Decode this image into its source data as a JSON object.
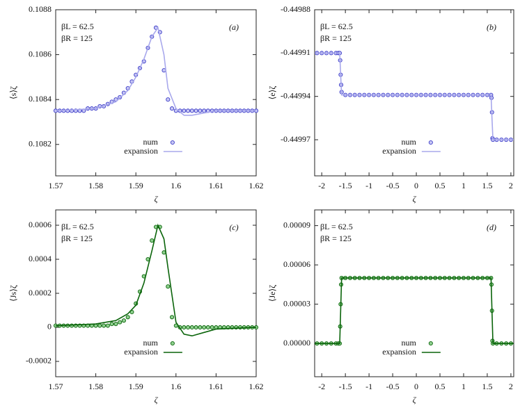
{
  "chart_data": [
    {
      "type": "line",
      "panel": "(a)",
      "ylabel": "⟨s⟩ζ",
      "xlabel": "ζ",
      "annotations": [
        "βL = 62.5",
        "βR = 125"
      ],
      "xlim": [
        1.57,
        1.62
      ],
      "xticks": [
        1.57,
        1.58,
        1.59,
        1.6,
        1.61,
        1.62
      ],
      "ylim": [
        0.10806,
        0.1088
      ],
      "yticks": [
        0.1082,
        0.1084,
        0.1086,
        0.1088
      ],
      "legend": "bottom",
      "series": [
        {
          "name": "num",
          "mode": "markers",
          "color": "#3b3bc8",
          "fill": "#c8c8f4",
          "x": [
            1.57,
            1.571,
            1.572,
            1.573,
            1.574,
            1.575,
            1.576,
            1.577,
            1.578,
            1.579,
            1.58,
            1.581,
            1.582,
            1.583,
            1.584,
            1.585,
            1.586,
            1.587,
            1.588,
            1.589,
            1.59,
            1.591,
            1.592,
            1.593,
            1.594,
            1.595,
            1.596,
            1.597,
            1.598,
            1.599,
            1.6,
            1.601,
            1.602,
            1.603,
            1.604,
            1.605,
            1.606,
            1.607,
            1.608,
            1.609,
            1.61,
            1.611,
            1.612,
            1.613,
            1.614,
            1.615,
            1.616,
            1.617,
            1.618,
            1.619,
            1.62
          ],
          "values": [
            0.10835,
            0.10835,
            0.10835,
            0.10835,
            0.10835,
            0.10835,
            0.10835,
            0.10835,
            0.10836,
            0.10836,
            0.10836,
            0.10837,
            0.10837,
            0.10838,
            0.10839,
            0.1084,
            0.10841,
            0.10843,
            0.10845,
            0.10848,
            0.10851,
            0.10854,
            0.10857,
            0.10863,
            0.10868,
            0.10872,
            0.1087,
            0.10853,
            0.1084,
            0.10836,
            0.10835,
            0.10835,
            0.10835,
            0.10835,
            0.10835,
            0.10835,
            0.10835,
            0.10835,
            0.10835,
            0.10835,
            0.10835,
            0.10835,
            0.10835,
            0.10835,
            0.10835,
            0.10835,
            0.10835,
            0.10835,
            0.10835,
            0.10835,
            0.10835
          ]
        },
        {
          "name": "expansion",
          "mode": "line",
          "color": "#a8a8ec",
          "x": [
            1.57,
            1.58,
            1.585,
            1.588,
            1.59,
            1.592,
            1.594,
            1.5955,
            1.597,
            1.598,
            1.6,
            1.602,
            1.604,
            1.607,
            1.61,
            1.62
          ],
          "values": [
            0.10835,
            0.10836,
            0.10839,
            0.10844,
            0.1085,
            0.10858,
            0.10868,
            0.10872,
            0.1086,
            0.10845,
            0.10836,
            0.10833,
            0.10833,
            0.10834,
            0.10835,
            0.10835
          ]
        }
      ]
    },
    {
      "type": "line",
      "panel": "(b)",
      "ylabel": "⟨e⟩ζ",
      "xlabel": "ζ",
      "annotations": [
        "βL = 62.5",
        "βR = 125"
      ],
      "xlim": [
        -2.15,
        2.06
      ],
      "xticks": [
        -2,
        -1.5,
        -1,
        -0.5,
        0,
        0.5,
        1,
        1.5,
        2
      ],
      "ylim": [
        -0.449995,
        -0.44988
      ],
      "yticks": [
        -0.44997,
        -0.44994,
        -0.44991,
        -0.44988
      ],
      "legend": "bottom",
      "series": [
        {
          "name": "num",
          "mode": "markers",
          "color": "#3b3bc8",
          "fill": "#c8c8f4",
          "x": [
            -2.1,
            -2,
            -1.9,
            -1.8,
            -1.7,
            -1.65,
            -1.62,
            -1.61,
            -1.6,
            -1.59,
            -1.58,
            -1.5,
            -1.4,
            -1.3,
            -1.2,
            -1.1,
            -1,
            -0.9,
            -0.8,
            -0.7,
            -0.6,
            -0.5,
            -0.4,
            -0.3,
            -0.2,
            -0.1,
            0,
            0.1,
            0.2,
            0.3,
            0.4,
            0.5,
            0.6,
            0.7,
            0.8,
            0.9,
            1,
            1.1,
            1.2,
            1.3,
            1.4,
            1.5,
            1.58,
            1.59,
            1.6,
            1.61,
            1.62,
            1.7,
            1.8,
            1.9,
            2
          ],
          "values": [
            -0.44991,
            -0.44991,
            -0.44991,
            -0.44991,
            -0.44991,
            -0.44991,
            -0.44991,
            -0.449915,
            -0.449925,
            -0.449932,
            -0.449937,
            -0.449939,
            -0.449939,
            -0.449939,
            -0.449939,
            -0.449939,
            -0.449939,
            -0.449939,
            -0.449939,
            -0.449939,
            -0.449939,
            -0.449939,
            -0.449939,
            -0.449939,
            -0.449939,
            -0.449939,
            -0.449939,
            -0.449939,
            -0.449939,
            -0.449939,
            -0.449939,
            -0.449939,
            -0.449939,
            -0.449939,
            -0.449939,
            -0.449939,
            -0.449939,
            -0.449939,
            -0.449939,
            -0.449939,
            -0.449939,
            -0.449939,
            -0.449939,
            -0.449941,
            -0.449951,
            -0.449969,
            -0.44997,
            -0.44997,
            -0.44997,
            -0.44997,
            -0.44997
          ]
        },
        {
          "name": "expansion",
          "mode": "line",
          "color": "#a8a8ec",
          "x": [
            -2.15,
            -1.62,
            -1.6,
            -1.58,
            1.58,
            1.6,
            1.62,
            2.06
          ],
          "values": [
            -0.44991,
            -0.44991,
            -0.449925,
            -0.449939,
            -0.449939,
            -0.449955,
            -0.44997,
            -0.44997
          ]
        }
      ]
    },
    {
      "type": "line",
      "panel": "(c)",
      "ylabel": "⟨Js⟩ζ",
      "xlabel": "ζ",
      "annotations": [
        "βL = 62.5",
        "βR = 125"
      ],
      "xlim": [
        1.57,
        1.62
      ],
      "xticks": [
        1.57,
        1.58,
        1.59,
        1.6,
        1.61,
        1.62
      ],
      "ylim": [
        -0.00029,
        0.00069
      ],
      "yticks": [
        -0.0002,
        0,
        0.0002,
        0.0004,
        0.0006
      ],
      "legend": "bottom",
      "series": [
        {
          "name": "num",
          "mode": "markers",
          "color": "#0a640a",
          "fill": "#8fd08f",
          "x": [
            1.57,
            1.571,
            1.572,
            1.573,
            1.574,
            1.575,
            1.576,
            1.577,
            1.578,
            1.579,
            1.58,
            1.581,
            1.582,
            1.583,
            1.584,
            1.585,
            1.586,
            1.587,
            1.588,
            1.589,
            1.59,
            1.591,
            1.592,
            1.593,
            1.594,
            1.595,
            1.596,
            1.597,
            1.598,
            1.599,
            1.6,
            1.601,
            1.602,
            1.603,
            1.604,
            1.605,
            1.606,
            1.607,
            1.608,
            1.609,
            1.61,
            1.611,
            1.612,
            1.613,
            1.614,
            1.615,
            1.616,
            1.617,
            1.618,
            1.619,
            1.62
          ],
          "values": [
            1e-05,
            1e-05,
            1e-05,
            1e-05,
            1e-05,
            1e-05,
            1e-05,
            1e-05,
            1e-05,
            1e-05,
            1e-05,
            1e-05,
            1e-05,
            1e-05,
            2e-05,
            2e-05,
            3e-05,
            4e-05,
            6e-05,
            9e-05,
            0.00014,
            0.00021,
            0.0003,
            0.0004,
            0.00051,
            0.00059,
            0.00059,
            0.00044,
            0.00024,
            6e-05,
            1e-05,
            0,
            0,
            0,
            0,
            0,
            0,
            0,
            0,
            0,
            0,
            0,
            0,
            0,
            0,
            0,
            0,
            0,
            0,
            0,
            0
          ]
        },
        {
          "name": "expansion",
          "mode": "line",
          "color": "#0a640a",
          "x": [
            1.57,
            1.58,
            1.585,
            1.588,
            1.59,
            1.592,
            1.594,
            1.5955,
            1.597,
            1.598,
            1.6,
            1.602,
            1.604,
            1.607,
            1.61,
            1.62
          ],
          "values": [
            1e-05,
            2e-05,
            4e-05,
            8e-05,
            0.00013,
            0.00026,
            0.00045,
            0.0006,
            0.00052,
            0.00035,
            3e-05,
            -4e-05,
            -5e-05,
            -3e-05,
            -1e-05,
            0
          ]
        }
      ]
    },
    {
      "type": "line",
      "panel": "(d)",
      "ylabel": "⟨Je⟩ζ",
      "xlabel": "ζ",
      "annotations": [
        "βL = 62.5",
        "βR = 125"
      ],
      "xlim": [
        -2.15,
        2.06
      ],
      "xticks": [
        -2,
        -1.5,
        -1,
        -0.5,
        0,
        0.5,
        1,
        1.5,
        2
      ],
      "ylim": [
        -2.54e-05,
        0.000102
      ],
      "yticks": [
        {
          "value": 0,
          "label": "0.00000"
        },
        3e-05,
        6e-05,
        9e-05
      ],
      "legend": "bottom",
      "series": [
        {
          "name": "num",
          "mode": "markers",
          "color": "#0a640a",
          "fill": "#8fd08f",
          "x": [
            -2.1,
            -2,
            -1.9,
            -1.8,
            -1.7,
            -1.65,
            -1.62,
            -1.61,
            -1.6,
            -1.59,
            -1.58,
            -1.5,
            -1.4,
            -1.3,
            -1.2,
            -1.1,
            -1,
            -0.9,
            -0.8,
            -0.7,
            -0.6,
            -0.5,
            -0.4,
            -0.3,
            -0.2,
            -0.1,
            0,
            0.1,
            0.2,
            0.3,
            0.4,
            0.5,
            0.6,
            0.7,
            0.8,
            0.9,
            1,
            1.1,
            1.2,
            1.3,
            1.4,
            1.5,
            1.58,
            1.59,
            1.6,
            1.61,
            1.62,
            1.7,
            1.8,
            1.9,
            2
          ],
          "values": [
            0,
            0,
            0,
            0,
            0,
            0,
            0,
            1.3e-05,
            3e-05,
            4.5e-05,
            5e-05,
            5e-05,
            5e-05,
            5e-05,
            5e-05,
            5e-05,
            5e-05,
            5e-05,
            5e-05,
            5e-05,
            5e-05,
            5e-05,
            5e-05,
            5e-05,
            5e-05,
            5e-05,
            5e-05,
            5e-05,
            5e-05,
            5e-05,
            5e-05,
            5e-05,
            5e-05,
            5e-05,
            5e-05,
            5e-05,
            5e-05,
            5e-05,
            5e-05,
            5e-05,
            5e-05,
            5e-05,
            5e-05,
            4.5e-05,
            2.5e-05,
            2e-06,
            0,
            0,
            0,
            0,
            0
          ]
        },
        {
          "name": "expansion",
          "mode": "line",
          "color": "#0a640a",
          "x": [
            -2.15,
            -1.62,
            -1.6,
            -1.58,
            1.58,
            1.6,
            1.62,
            2.06
          ],
          "values": [
            0,
            0,
            2.5e-05,
            5e-05,
            5e-05,
            2.5e-05,
            0,
            0
          ]
        }
      ]
    }
  ]
}
